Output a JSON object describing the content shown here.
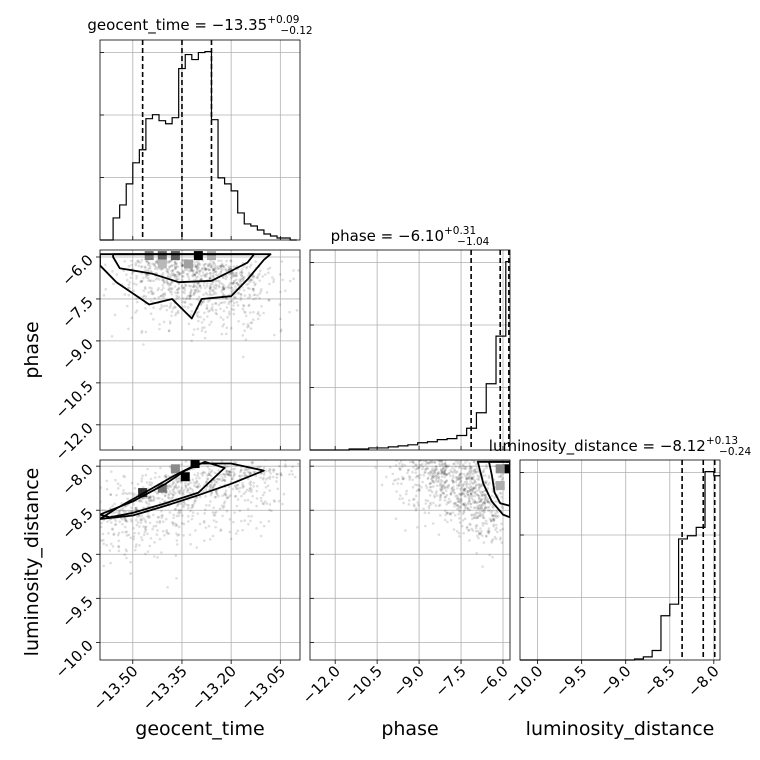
{
  "chart_data": {
    "type": "corner",
    "parameters": [
      "geocent_time",
      "phase",
      "luminosity_distance"
    ],
    "titles": [
      {
        "name": "geocent_time",
        "median": "−13.35",
        "plus": "+0.09",
        "minus": "−0.12"
      },
      {
        "name": "phase",
        "median": "−6.10",
        "plus": "+0.31",
        "minus": "−1.04"
      },
      {
        "name": "luminosity_distance",
        "median": "−8.12",
        "plus": "+0.13",
        "minus": "−0.24"
      }
    ],
    "axis_labels": [
      "geocent_time",
      "phase",
      "luminosity_distance"
    ],
    "ranges": {
      "geocent_time": [
        -13.6,
        -12.99
      ],
      "phase": [
        -12.9,
        -5.75
      ],
      "luminosity_distance": [
        -10.2,
        -7.93
      ]
    },
    "ticks": {
      "geocent_time": {
        "values": [
          -13.5,
          -13.35,
          -13.2,
          -13.05
        ],
        "labels": [
          "−13.50",
          "−13.35",
          "−13.20",
          "−13.05"
        ]
      },
      "phase": {
        "values": [
          -12.0,
          -10.5,
          -9.0,
          -7.5,
          -6.0
        ],
        "labels": [
          "−12.0",
          "−10.5",
          "−9.0",
          "−7.5",
          "−6.0"
        ]
      },
      "luminosity_distance_y": {
        "values": [
          -10.0,
          -9.5,
          -9.0,
          -8.5,
          -8.0
        ],
        "labels": [
          "−10.0",
          "−9.5",
          "−9.0",
          "−8.5",
          "−8.0"
        ]
      },
      "luminosity_distance_x": {
        "values": [
          -10.0,
          -9.5,
          -9.0,
          -8.5,
          -8.0
        ],
        "labels": [
          "−10.0",
          "−9.5",
          "−9.0",
          "−8.5",
          "−8.0"
        ]
      }
    },
    "quantiles": {
      "geocent_time": [
        -13.47,
        -13.35,
        -13.26
      ],
      "phase": [
        -7.14,
        -6.1,
        -5.79
      ],
      "luminosity_distance": [
        -8.36,
        -8.12,
        -7.99
      ]
    },
    "histograms": {
      "geocent_time": {
        "edges": [
          -13.6,
          -13.58,
          -13.56,
          -13.54,
          -13.52,
          -13.5,
          -13.48,
          -13.46,
          -13.44,
          -13.42,
          -13.4,
          -13.38,
          -13.36,
          -13.34,
          -13.32,
          -13.3,
          -13.28,
          -13.26,
          -13.24,
          -13.22,
          -13.2,
          -13.18,
          -13.16,
          -13.14,
          -13.12,
          -13.1,
          -13.08,
          -13.06,
          -13.04,
          -13.02,
          -13.0
        ],
        "counts": [
          0,
          0,
          22,
          35,
          56,
          77,
          90,
          121,
          125,
          119,
          116,
          122,
          171,
          185,
          180,
          187,
          188,
          120,
          62,
          56,
          49,
          27,
          16,
          14,
          10,
          6,
          4,
          2,
          2,
          0
        ]
      },
      "phase": {
        "edges": [
          -12.9,
          -12.55,
          -12.2,
          -11.85,
          -11.5,
          -11.15,
          -10.8,
          -10.45,
          -10.1,
          -9.75,
          -9.4,
          -9.05,
          -8.7,
          -8.35,
          -8.0,
          -7.65,
          -7.3,
          -6.95,
          -6.6,
          -6.25,
          -5.9,
          -5.75
        ],
        "counts": [
          0,
          0,
          0,
          0,
          1,
          1,
          2,
          2,
          3,
          4,
          5,
          7,
          8,
          10,
          11,
          14,
          21,
          36,
          64,
          110,
          182
        ]
      },
      "luminosity_distance": {
        "edges": [
          -10.2,
          -10.1,
          -10.0,
          -9.9,
          -9.8,
          -9.7,
          -9.6,
          -9.5,
          -9.4,
          -9.3,
          -9.2,
          -9.1,
          -9.0,
          -8.9,
          -8.8,
          -8.7,
          -8.6,
          -8.5,
          -8.4,
          -8.3,
          -8.2,
          -8.1,
          -8.0,
          -7.93
        ],
        "counts": [
          0,
          0,
          0,
          0,
          0,
          0,
          0,
          0,
          0,
          0,
          0,
          0,
          0,
          1,
          3,
          9,
          42,
          53,
          115,
          118,
          126,
          179,
          175
        ]
      }
    },
    "densities": {
      "geocent_time_vs_phase": {
        "x": [
          -13.4,
          -13.3,
          -13.2
        ],
        "y": [
          -6.1,
          -6.1,
          -6.3
        ],
        "contours": [
          [
            [
              -13.56,
              -6.0
            ],
            [
              -13.54,
              -6.4
            ],
            [
              -13.44,
              -6.6
            ],
            [
              -13.36,
              -6.9
            ],
            [
              -13.26,
              -6.85
            ],
            [
              -13.2,
              -6.5
            ],
            [
              -13.15,
              -6.2
            ],
            [
              -13.13,
              -5.9
            ],
            [
              -13.56,
              -5.9
            ]
          ],
          [
            [
              -13.6,
              -6.3
            ],
            [
              -13.55,
              -6.9
            ],
            [
              -13.5,
              -7.3
            ],
            [
              -13.45,
              -7.7
            ],
            [
              -13.38,
              -7.5
            ],
            [
              -13.32,
              -8.2
            ],
            [
              -13.29,
              -7.5
            ],
            [
              -13.2,
              -7.4
            ],
            [
              -13.15,
              -6.8
            ],
            [
              -13.1,
              -6.1
            ],
            [
              -13.08,
              -5.9
            ],
            [
              -13.6,
              -5.9
            ]
          ]
        ],
        "bins": [
          {
            "x": -13.45,
            "y": -5.95,
            "level": 0.45
          },
          {
            "x": -13.41,
            "y": -5.95,
            "level": 0.55
          },
          {
            "x": -13.37,
            "y": -5.95,
            "level": 0.6
          },
          {
            "x": -13.3,
            "y": -5.95,
            "level": 1.0
          },
          {
            "x": -13.26,
            "y": -5.95,
            "level": 0.25
          },
          {
            "x": -13.41,
            "y": -6.25,
            "level": 0.2
          },
          {
            "x": -13.33,
            "y": -6.25,
            "level": 0.3
          }
        ]
      },
      "geocent_time_vs_luminosity_distance": {
        "x": [
          -13.55,
          -13.45,
          -13.35,
          -13.25,
          -13.15
        ],
        "y": [
          -8.55,
          -8.35,
          -8.2,
          -8.1,
          -8.05
        ],
        "contours": [
          [
            [
              -13.6,
              -8.55
            ],
            [
              -13.5,
              -8.4
            ],
            [
              -13.4,
              -8.2
            ],
            [
              -13.34,
              -8.05
            ],
            [
              -13.28,
              -7.95
            ],
            [
              -13.22,
              -8.02
            ],
            [
              -13.3,
              -8.3
            ],
            [
              -13.4,
              -8.42
            ],
            [
              -13.5,
              -8.53
            ],
            [
              -13.57,
              -8.58
            ],
            [
              -13.6,
              -8.55
            ]
          ],
          [
            [
              -13.6,
              -8.6
            ],
            [
              -13.55,
              -8.48
            ],
            [
              -13.45,
              -8.27
            ],
            [
              -13.37,
              -8.1
            ],
            [
              -13.3,
              -7.97
            ],
            [
              -13.2,
              -7.97
            ],
            [
              -13.1,
              -8.05
            ],
            [
              -13.2,
              -8.2
            ],
            [
              -13.3,
              -8.33
            ],
            [
              -13.4,
              -8.45
            ],
            [
              -13.5,
              -8.56
            ],
            [
              -13.6,
              -8.6
            ]
          ]
        ],
        "bins": [
          {
            "x": -13.47,
            "y": -8.3,
            "level": 0.8
          },
          {
            "x": -13.41,
            "y": -8.25,
            "level": 0.5
          },
          {
            "x": -13.34,
            "y": -8.12,
            "level": 1.0
          },
          {
            "x": -13.31,
            "y": -7.97,
            "level": 1.0
          },
          {
            "x": -13.37,
            "y": -8.03,
            "level": 0.4
          }
        ]
      },
      "phase_vs_luminosity_distance": {
        "x": [
          -8.0,
          -7.0,
          -6.5,
          -6.0
        ],
        "y": [
          -8.0,
          -8.1,
          -8.3,
          -8.4
        ],
        "contours": [
          [
            [
              -6.9,
              -7.95
            ],
            [
              -6.7,
              -8.2
            ],
            [
              -6.4,
              -8.4
            ],
            [
              -6.0,
              -8.55
            ],
            [
              -5.75,
              -8.58
            ],
            [
              -5.75,
              -7.95
            ]
          ],
          [
            [
              -6.5,
              -7.95
            ],
            [
              -6.4,
              -8.1
            ],
            [
              -6.3,
              -8.3
            ],
            [
              -6.1,
              -8.42
            ],
            [
              -5.75,
              -8.45
            ],
            [
              -5.75,
              -7.95
            ]
          ]
        ],
        "bins": [
          {
            "x": -5.85,
            "y": -8.03,
            "level": 1.0
          },
          {
            "x": -6.1,
            "y": -8.03,
            "level": 0.4
          },
          {
            "x": -6.1,
            "y": -8.22,
            "level": 0.25
          }
        ]
      }
    }
  }
}
